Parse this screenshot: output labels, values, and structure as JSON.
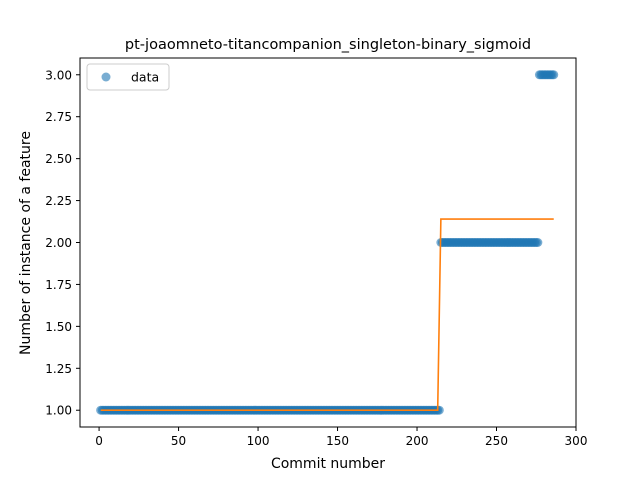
{
  "chart_data": {
    "type": "scatter",
    "title": "pt-joaomneto-titancompanion_singleton-binary_sigmoid",
    "xlabel": "Commit number",
    "ylabel": "Number of instance of a feature",
    "xlim": [
      -12,
      300
    ],
    "ylim": [
      0.9,
      3.1
    ],
    "xticks": [
      0,
      50,
      100,
      150,
      200,
      250,
      300
    ],
    "yticks": [
      1.0,
      1.25,
      1.5,
      1.75,
      2.0,
      2.25,
      2.5,
      2.75,
      3.0
    ],
    "ytick_labels": [
      "1.00",
      "1.25",
      "1.50",
      "1.75",
      "2.00",
      "2.25",
      "2.50",
      "2.75",
      "3.00"
    ],
    "grid": false,
    "legend_position": "top-left",
    "series": [
      {
        "name": "data",
        "kind": "scatter",
        "color": "#1f77b4",
        "segments": [
          {
            "x_start": 1,
            "x_end": 214,
            "y": 1
          },
          {
            "x_start": 215,
            "x_end": 276,
            "y": 2
          },
          {
            "x_start": 277,
            "x_end": 286,
            "y": 3
          }
        ]
      },
      {
        "kind": "line",
        "color": "#ff7f0e",
        "x": [
          1,
          213,
          215,
          286
        ],
        "y": [
          1.0,
          1.0,
          2.14,
          2.14
        ]
      }
    ]
  }
}
